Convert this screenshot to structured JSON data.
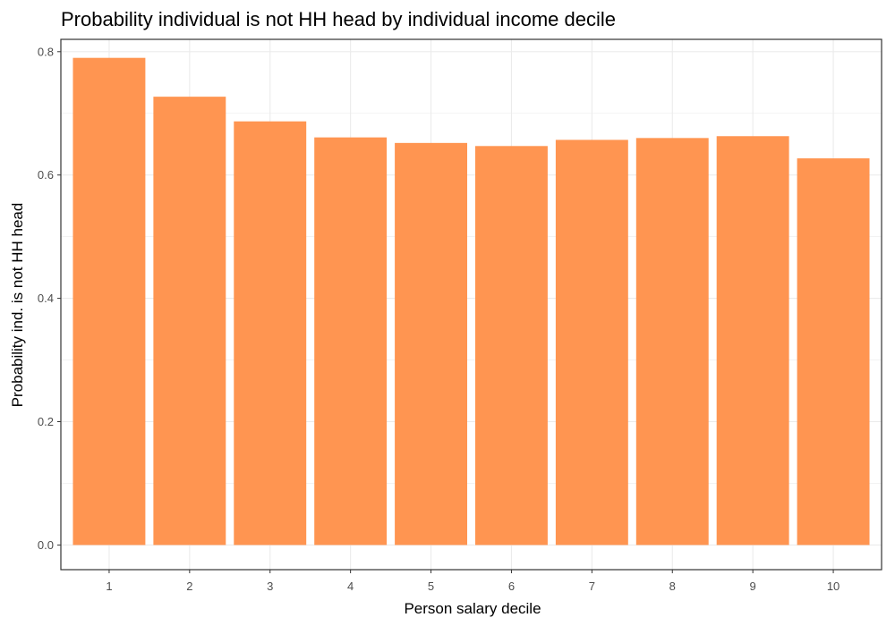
{
  "chart_data": {
    "type": "bar",
    "title": "Probability individual is not HH head by individual income decile",
    "xlabel": "Person salary decile",
    "ylabel": "Probability ind. is not HH head",
    "categories": [
      "1",
      "2",
      "3",
      "4",
      "5",
      "6",
      "7",
      "8",
      "9",
      "10"
    ],
    "values": [
      0.79,
      0.727,
      0.687,
      0.661,
      0.652,
      0.647,
      0.657,
      0.66,
      0.663,
      0.627
    ],
    "ylim": [
      -0.04,
      0.82
    ],
    "yticks": [
      0.0,
      0.2,
      0.4,
      0.6,
      0.8
    ],
    "ytick_labels": [
      "0.0",
      "0.2",
      "0.4",
      "0.6",
      "0.8"
    ],
    "grid": true,
    "legend": "none",
    "colors": {
      "bar": "#ff9551",
      "grid": "#ebebeb",
      "panel_border": "#333333",
      "tick_text": "#4d4d4d"
    }
  }
}
